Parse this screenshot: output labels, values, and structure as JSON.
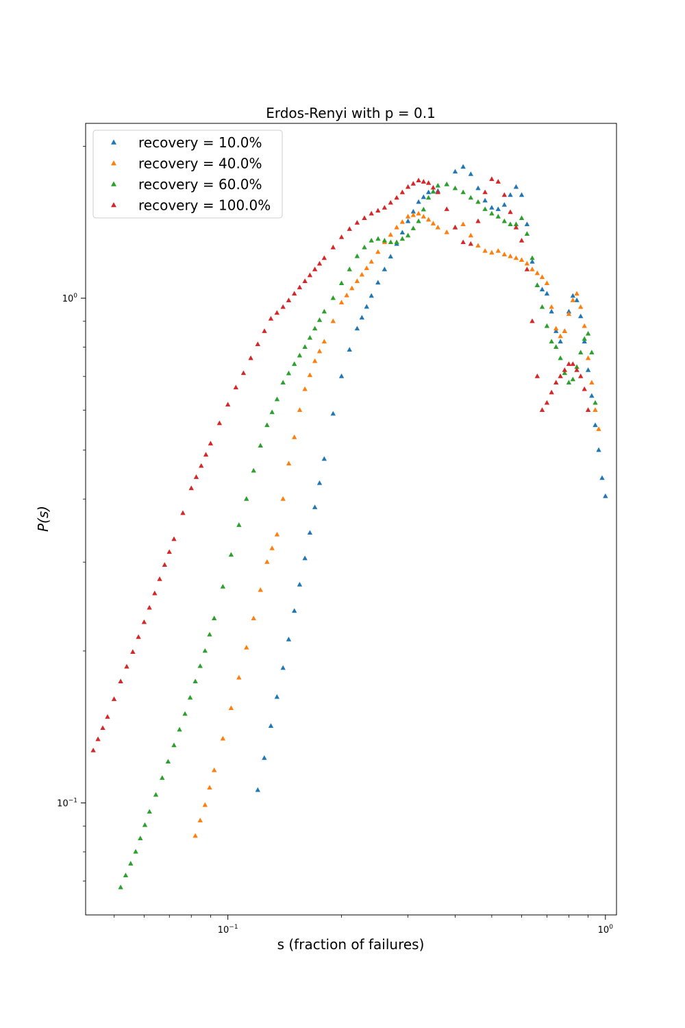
{
  "chart_data": {
    "type": "scatter",
    "title": "Erdos-Renyi with p = 0.1",
    "xlabel": "s (fraction of failures)",
    "ylabel": "P(s)",
    "xscale": "log",
    "yscale": "log",
    "xlim": [
      0.042,
      1.07
    ],
    "ylim": [
      0.06,
      2.22
    ],
    "xticks": [
      {
        "value": 0.1,
        "base": "10",
        "exp": "−1"
      },
      {
        "value": 1.0,
        "base": "10",
        "exp": "0"
      }
    ],
    "yticks": [
      {
        "value": 0.1,
        "base": "10",
        "exp": "−1"
      },
      {
        "value": 1.0,
        "base": "10",
        "exp": "0"
      }
    ],
    "marker": "triangle-up",
    "grid": false,
    "legend_position": "top-left",
    "series": [
      {
        "name": "recovery = 10.0%",
        "color": "#1f77b4",
        "points": [
          [
            0.12,
            0.106
          ],
          [
            0.13,
            0.142
          ],
          [
            0.14,
            0.185
          ],
          [
            0.15,
            0.24
          ],
          [
            0.16,
            0.305
          ],
          [
            0.17,
            0.385
          ],
          [
            0.18,
            0.48
          ],
          [
            0.19,
            0.59
          ],
          [
            0.2,
            0.7
          ],
          [
            0.21,
            0.79
          ],
          [
            0.22,
            0.87
          ],
          [
            0.24,
            1.01
          ],
          [
            0.26,
            1.14
          ],
          [
            0.28,
            1.28
          ],
          [
            0.3,
            1.42
          ],
          [
            0.32,
            1.55
          ],
          [
            0.34,
            1.62
          ],
          [
            0.36,
            1.63
          ],
          [
            0.38,
            1.68
          ],
          [
            0.4,
            1.78
          ],
          [
            0.42,
            1.82
          ],
          [
            0.44,
            1.76
          ],
          [
            0.46,
            1.65
          ],
          [
            0.48,
            1.56
          ],
          [
            0.5,
            1.51
          ],
          [
            0.52,
            1.5
          ],
          [
            0.54,
            1.53
          ],
          [
            0.56,
            1.6
          ],
          [
            0.58,
            1.66
          ],
          [
            0.6,
            1.6
          ],
          [
            0.62,
            1.4
          ],
          [
            0.64,
            1.18
          ],
          [
            0.66,
            1.06
          ],
          [
            0.68,
            1.04
          ],
          [
            0.7,
            1.02
          ],
          [
            0.72,
            0.94
          ],
          [
            0.74,
            0.86
          ],
          [
            0.76,
            0.82
          ],
          [
            0.78,
            0.86
          ],
          [
            0.8,
            0.94
          ],
          [
            0.82,
            1.01
          ],
          [
            0.84,
            0.99
          ],
          [
            0.86,
            0.92
          ],
          [
            0.88,
            0.82
          ],
          [
            0.9,
            0.72
          ],
          [
            0.92,
            0.64
          ],
          [
            0.94,
            0.56
          ],
          [
            0.96,
            0.5
          ],
          [
            0.98,
            0.44
          ],
          [
            1.0,
            0.405
          ]
        ]
      },
      {
        "name": "recovery = 40.0%",
        "color": "#ff7f0e",
        "points": [
          [
            0.082,
            0.086
          ],
          [
            0.087,
            0.099
          ],
          [
            0.092,
            0.116
          ],
          [
            0.097,
            0.134
          ],
          [
            0.102,
            0.154
          ],
          [
            0.107,
            0.177
          ],
          [
            0.112,
            0.203
          ],
          [
            0.117,
            0.232
          ],
          [
            0.122,
            0.264
          ],
          [
            0.127,
            0.3
          ],
          [
            0.135,
            0.34
          ],
          [
            0.14,
            0.4
          ],
          [
            0.145,
            0.47
          ],
          [
            0.15,
            0.53
          ],
          [
            0.155,
            0.6
          ],
          [
            0.16,
            0.66
          ],
          [
            0.17,
            0.75
          ],
          [
            0.18,
            0.82
          ],
          [
            0.19,
            0.9
          ],
          [
            0.2,
            0.98
          ],
          [
            0.22,
            1.08
          ],
          [
            0.24,
            1.18
          ],
          [
            0.26,
            1.29
          ],
          [
            0.28,
            1.38
          ],
          [
            0.3,
            1.45
          ],
          [
            0.32,
            1.47
          ],
          [
            0.34,
            1.43
          ],
          [
            0.36,
            1.38
          ],
          [
            0.38,
            1.35
          ],
          [
            0.4,
            1.38
          ],
          [
            0.42,
            1.4
          ],
          [
            0.44,
            1.33
          ],
          [
            0.46,
            1.27
          ],
          [
            0.48,
            1.24
          ],
          [
            0.5,
            1.23
          ],
          [
            0.52,
            1.24
          ],
          [
            0.54,
            1.22
          ],
          [
            0.56,
            1.21
          ],
          [
            0.58,
            1.2
          ],
          [
            0.6,
            1.19
          ],
          [
            0.62,
            1.17
          ],
          [
            0.64,
            1.14
          ],
          [
            0.66,
            1.12
          ],
          [
            0.68,
            1.1
          ],
          [
            0.7,
            1.07
          ],
          [
            0.72,
            0.96
          ],
          [
            0.74,
            0.87
          ],
          [
            0.76,
            0.84
          ],
          [
            0.78,
            0.86
          ],
          [
            0.8,
            0.93
          ],
          [
            0.82,
            0.99
          ],
          [
            0.84,
            1.02
          ],
          [
            0.86,
            0.96
          ],
          [
            0.88,
            0.88
          ],
          [
            0.9,
            0.76
          ],
          [
            0.92,
            0.68
          ],
          [
            0.94,
            0.6
          ],
          [
            0.96,
            0.55
          ]
        ]
      },
      {
        "name": "recovery = 60.0%",
        "color": "#2ca02c",
        "points": [
          [
            0.052,
            0.068
          ],
          [
            0.057,
            0.08
          ],
          [
            0.062,
            0.096
          ],
          [
            0.067,
            0.112
          ],
          [
            0.072,
            0.13
          ],
          [
            0.077,
            0.15
          ],
          [
            0.082,
            0.174
          ],
          [
            0.087,
            0.2
          ],
          [
            0.092,
            0.232
          ],
          [
            0.097,
            0.268
          ],
          [
            0.102,
            0.31
          ],
          [
            0.107,
            0.355
          ],
          [
            0.112,
            0.4
          ],
          [
            0.117,
            0.455
          ],
          [
            0.122,
            0.51
          ],
          [
            0.127,
            0.56
          ],
          [
            0.135,
            0.63
          ],
          [
            0.14,
            0.68
          ],
          [
            0.15,
            0.74
          ],
          [
            0.16,
            0.8
          ],
          [
            0.17,
            0.87
          ],
          [
            0.18,
            0.94
          ],
          [
            0.19,
            1.0
          ],
          [
            0.2,
            1.07
          ],
          [
            0.21,
            1.14
          ],
          [
            0.22,
            1.21
          ],
          [
            0.23,
            1.26
          ],
          [
            0.24,
            1.3
          ],
          [
            0.25,
            1.31
          ],
          [
            0.26,
            1.3
          ],
          [
            0.27,
            1.29
          ],
          [
            0.28,
            1.29
          ],
          [
            0.3,
            1.33
          ],
          [
            0.32,
            1.42
          ],
          [
            0.34,
            1.58
          ],
          [
            0.36,
            1.67
          ],
          [
            0.38,
            1.68
          ],
          [
            0.4,
            1.65
          ],
          [
            0.42,
            1.62
          ],
          [
            0.44,
            1.58
          ],
          [
            0.46,
            1.55
          ],
          [
            0.48,
            1.5
          ],
          [
            0.5,
            1.47
          ],
          [
            0.52,
            1.45
          ],
          [
            0.54,
            1.42
          ],
          [
            0.56,
            1.4
          ],
          [
            0.58,
            1.4
          ],
          [
            0.6,
            1.44
          ],
          [
            0.62,
            1.34
          ],
          [
            0.64,
            1.2
          ],
          [
            0.66,
            1.06
          ],
          [
            0.68,
            0.96
          ],
          [
            0.7,
            0.88
          ],
          [
            0.72,
            0.82
          ],
          [
            0.74,
            0.8
          ],
          [
            0.76,
            0.76
          ],
          [
            0.78,
            0.71
          ],
          [
            0.8,
            0.68
          ],
          [
            0.82,
            0.69
          ],
          [
            0.84,
            0.73
          ],
          [
            0.86,
            0.78
          ],
          [
            0.88,
            0.83
          ],
          [
            0.9,
            0.85
          ],
          [
            0.92,
            0.78
          ],
          [
            0.94,
            0.62
          ]
        ]
      },
      {
        "name": "recovery = 100.0%",
        "color": "#d62728",
        "points": [
          [
            0.044,
            0.127
          ],
          [
            0.048,
            0.148
          ],
          [
            0.052,
            0.174
          ],
          [
            0.056,
            0.199
          ],
          [
            0.06,
            0.228
          ],
          [
            0.064,
            0.26
          ],
          [
            0.068,
            0.296
          ],
          [
            0.072,
            0.333
          ],
          [
            0.076,
            0.375
          ],
          [
            0.08,
            0.42
          ],
          [
            0.085,
            0.465
          ],
          [
            0.09,
            0.515
          ],
          [
            0.095,
            0.565
          ],
          [
            0.1,
            0.615
          ],
          [
            0.105,
            0.665
          ],
          [
            0.11,
            0.71
          ],
          [
            0.115,
            0.76
          ],
          [
            0.12,
            0.81
          ],
          [
            0.125,
            0.86
          ],
          [
            0.13,
            0.91
          ],
          [
            0.14,
            0.96
          ],
          [
            0.15,
            1.02
          ],
          [
            0.16,
            1.08
          ],
          [
            0.17,
            1.14
          ],
          [
            0.18,
            1.2
          ],
          [
            0.19,
            1.26
          ],
          [
            0.2,
            1.32
          ],
          [
            0.21,
            1.37
          ],
          [
            0.22,
            1.41
          ],
          [
            0.23,
            1.44
          ],
          [
            0.24,
            1.47
          ],
          [
            0.26,
            1.51
          ],
          [
            0.28,
            1.58
          ],
          [
            0.3,
            1.66
          ],
          [
            0.32,
            1.71
          ],
          [
            0.34,
            1.69
          ],
          [
            0.36,
            1.62
          ],
          [
            0.38,
            1.5
          ],
          [
            0.4,
            1.38
          ],
          [
            0.42,
            1.29
          ],
          [
            0.44,
            1.28
          ],
          [
            0.46,
            1.42
          ],
          [
            0.48,
            1.62
          ],
          [
            0.5,
            1.72
          ],
          [
            0.52,
            1.7
          ],
          [
            0.54,
            1.6
          ],
          [
            0.56,
            1.48
          ],
          [
            0.58,
            1.38
          ],
          [
            0.6,
            1.3
          ],
          [
            0.62,
            1.14
          ],
          [
            0.64,
            0.9
          ],
          [
            0.66,
            0.7
          ],
          [
            0.68,
            0.6
          ],
          [
            0.7,
            0.62
          ],
          [
            0.72,
            0.65
          ],
          [
            0.74,
            0.68
          ],
          [
            0.76,
            0.7
          ],
          [
            0.78,
            0.72
          ],
          [
            0.8,
            0.74
          ],
          [
            0.82,
            0.74
          ],
          [
            0.84,
            0.72
          ],
          [
            0.86,
            0.7
          ],
          [
            0.88,
            0.66
          ],
          [
            0.9,
            0.6
          ]
        ]
      }
    ]
  }
}
